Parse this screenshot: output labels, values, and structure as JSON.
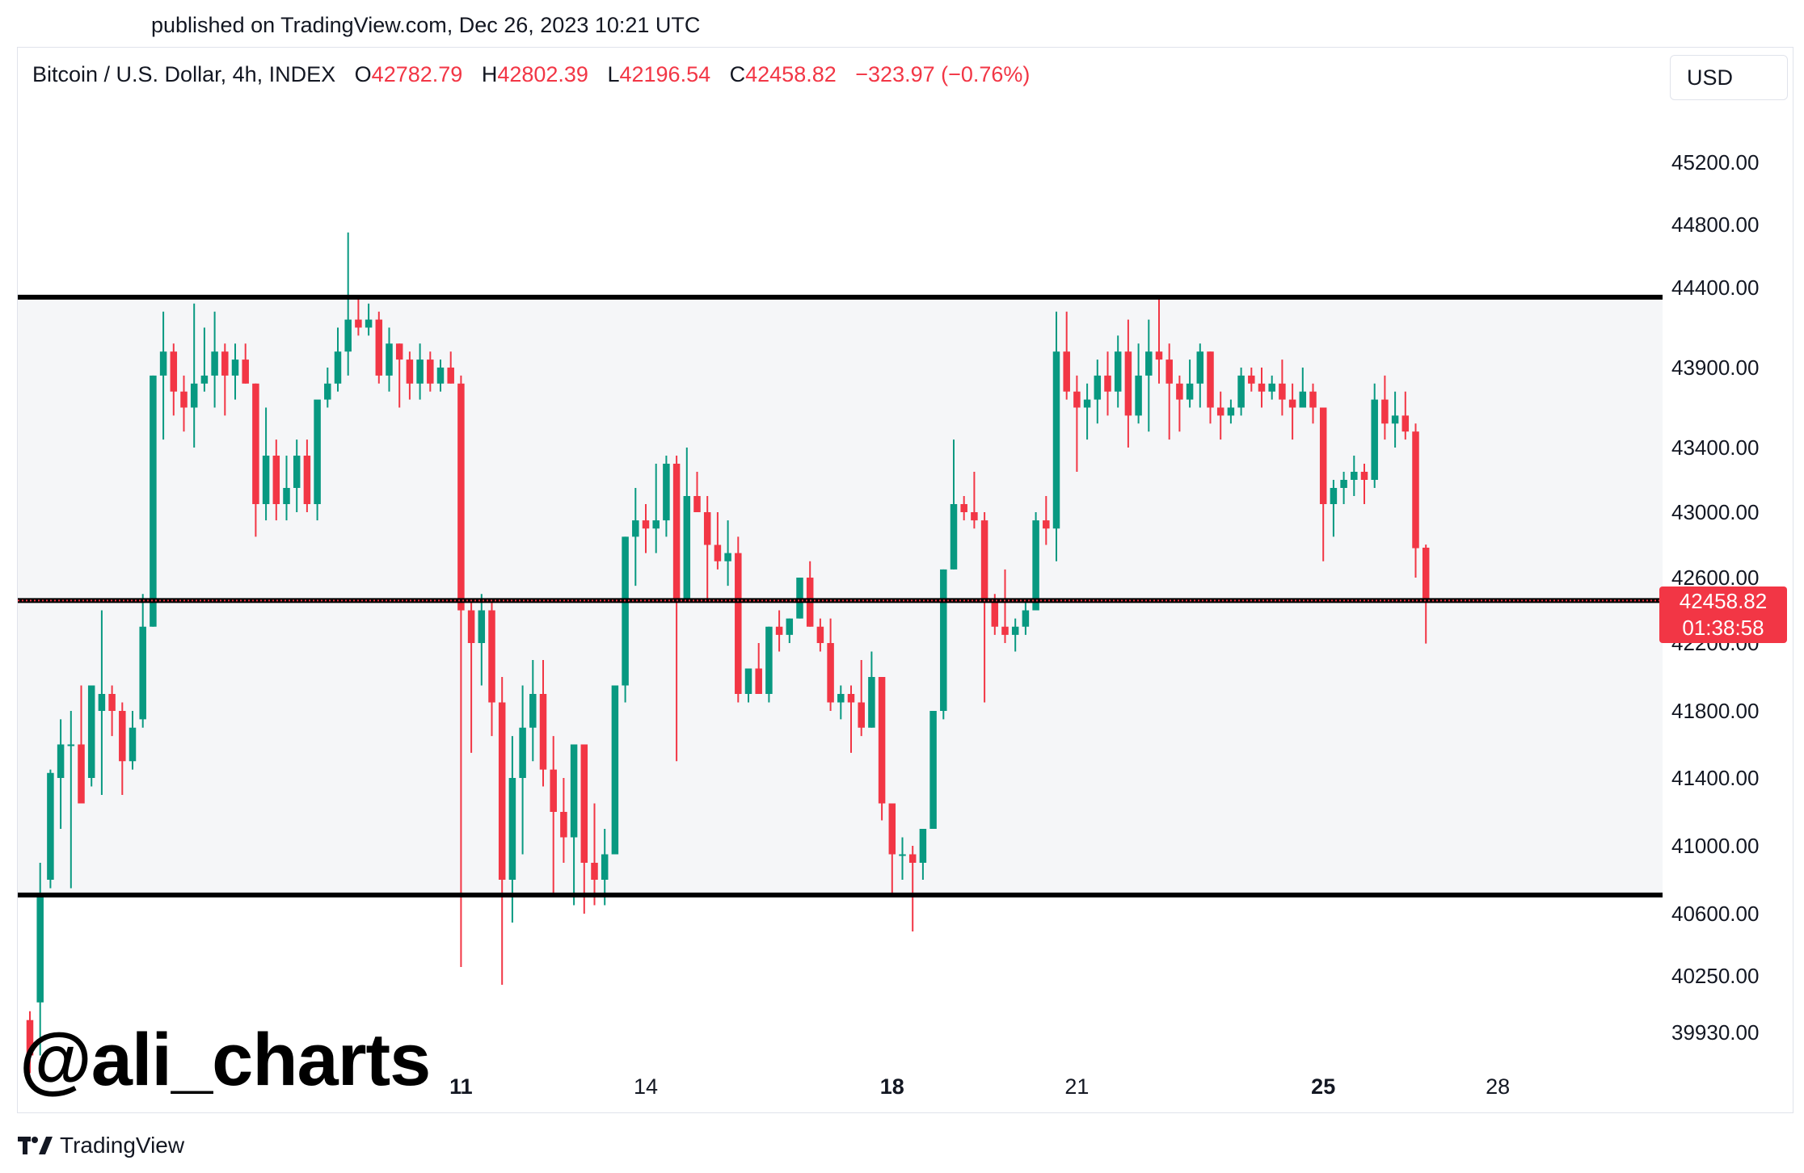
{
  "header": {
    "published": "published on TradingView.com, Dec 26, 2023 10:21 UTC"
  },
  "legend": {
    "symbol": "Bitcoin / U.S. Dollar, 4h, INDEX",
    "open_label": "O",
    "open": "42782.79",
    "high_label": "H",
    "high": "42802.39",
    "low_label": "L",
    "low": "42196.54",
    "close_label": "C",
    "close": "42458.82",
    "change": "−323.97 (−0.76%)"
  },
  "currency_button": "USD",
  "price_tag": {
    "price": "42458.82",
    "countdown": "01:38:58"
  },
  "watermark": "@ali_charts",
  "footer": {
    "brand": "TradingView"
  },
  "colors": {
    "up": "#089981",
    "down": "#f23645",
    "range_fill": "#f5f6f8",
    "level_line": "#000000"
  },
  "chart_data": {
    "type": "candlestick",
    "symbol": "Bitcoin / U.S. Dollar",
    "interval": "4h",
    "y_axis": {
      "side": "right",
      "ticks": [
        {
          "label": "45200.00",
          "value": 45200
        },
        {
          "label": "44800.00",
          "value": 44800
        },
        {
          "label": "44400.00",
          "value": 44400
        },
        {
          "label": "43900.00",
          "value": 43900
        },
        {
          "label": "43400.00",
          "value": 43400
        },
        {
          "label": "43000.00",
          "value": 43000
        },
        {
          "label": "42600.00",
          "value": 42600
        },
        {
          "label": "42200.00",
          "value": 42200
        },
        {
          "label": "41800.00",
          "value": 41800
        },
        {
          "label": "41400.00",
          "value": 41400
        },
        {
          "label": "41000.00",
          "value": 41000
        },
        {
          "label": "40600.00",
          "value": 40600
        },
        {
          "label": "40250.00",
          "value": 40250
        },
        {
          "label": "39930.00",
          "value": 39930
        }
      ]
    },
    "x_axis": {
      "ticks": [
        {
          "label": "11",
          "bold": true,
          "index": 42
        },
        {
          "label": "14",
          "bold": false,
          "index": 60
        },
        {
          "label": "18",
          "bold": true,
          "index": 84
        },
        {
          "label": "21",
          "bold": false,
          "index": 102
        },
        {
          "label": "25",
          "bold": true,
          "index": 126
        },
        {
          "label": "28",
          "bold": false,
          "index": 143
        }
      ]
    },
    "range": {
      "top": 44340,
      "bottom": 40710
    },
    "levels": [
      44340,
      42460,
      40710
    ],
    "current_price": 42458.82,
    "candles": [
      [
        40000,
        40050,
        39700,
        39800
      ],
      [
        40100,
        40900,
        39800,
        40700
      ],
      [
        40800,
        41450,
        40750,
        41430
      ],
      [
        41400,
        41750,
        41100,
        41600
      ],
      [
        41600,
        41800,
        40750,
        41600
      ],
      [
        41600,
        41950,
        41250,
        41250
      ],
      [
        41400,
        41950,
        41350,
        41950
      ],
      [
        41800,
        42400,
        41300,
        41900
      ],
      [
        41900,
        41950,
        41650,
        41800
      ],
      [
        41800,
        41850,
        41300,
        41500
      ],
      [
        41500,
        41800,
        41450,
        41700
      ],
      [
        41750,
        42500,
        41700,
        42300
      ],
      [
        42300,
        43850,
        42300,
        43850
      ],
      [
        43850,
        44250,
        43450,
        44000
      ],
      [
        44000,
        44050,
        43600,
        43750
      ],
      [
        43750,
        43850,
        43500,
        43650
      ],
      [
        43650,
        44300,
        43400,
        43800
      ],
      [
        43800,
        44150,
        43750,
        43850
      ],
      [
        43850,
        44250,
        43650,
        44000
      ],
      [
        44000,
        44050,
        43600,
        43850
      ],
      [
        43850,
        44050,
        43700,
        43950
      ],
      [
        43950,
        44050,
        43800,
        43800
      ],
      [
        43800,
        43800,
        42850,
        43050
      ],
      [
        43050,
        43650,
        42950,
        43350
      ],
      [
        43350,
        43450,
        42950,
        43050
      ],
      [
        43050,
        43350,
        42950,
        43150
      ],
      [
        43150,
        43450,
        43000,
        43350
      ],
      [
        43350,
        43450,
        43000,
        43050
      ],
      [
        43050,
        43650,
        42950,
        43700
      ],
      [
        43700,
        43900,
        43650,
        43800
      ],
      [
        43800,
        44150,
        43750,
        44000
      ],
      [
        44000,
        44750,
        43850,
        44200
      ],
      [
        44200,
        44350,
        44100,
        44150
      ],
      [
        44150,
        44300,
        44100,
        44200
      ],
      [
        44200,
        44250,
        43800,
        43850
      ],
      [
        43850,
        44150,
        43750,
        44050
      ],
      [
        44050,
        44050,
        43650,
        43950
      ],
      [
        43950,
        44000,
        43700,
        43800
      ],
      [
        43800,
        44050,
        43700,
        43950
      ],
      [
        43950,
        44000,
        43750,
        43800
      ],
      [
        43800,
        43950,
        43750,
        43900
      ],
      [
        43900,
        44000,
        43800,
        43800
      ],
      [
        43800,
        43850,
        40300,
        42400
      ],
      [
        42400,
        42450,
        41550,
        42200
      ],
      [
        42200,
        42500,
        41950,
        42400
      ],
      [
        42400,
        42450,
        41650,
        41850
      ],
      [
        41850,
        42000,
        40200,
        40800
      ],
      [
        40800,
        41650,
        40550,
        41400
      ],
      [
        41400,
        41950,
        40950,
        41700
      ],
      [
        41700,
        42100,
        41500,
        41900
      ],
      [
        41900,
        42100,
        41350,
        41450
      ],
      [
        41450,
        41650,
        40700,
        41200
      ],
      [
        41200,
        41400,
        40900,
        41050
      ],
      [
        41050,
        41600,
        40650,
        41600
      ],
      [
        41600,
        41600,
        40600,
        40900
      ],
      [
        40900,
        41250,
        40650,
        40800
      ],
      [
        40800,
        41100,
        40650,
        40950
      ],
      [
        40950,
        41950,
        40950,
        41950
      ],
      [
        41950,
        42850,
        41850,
        42850
      ],
      [
        42850,
        43150,
        42550,
        42950
      ],
      [
        42950,
        43050,
        42750,
        42900
      ],
      [
        42900,
        43300,
        42750,
        42950
      ],
      [
        42950,
        43350,
        42850,
        43300
      ],
      [
        43300,
        43350,
        41500,
        42450
      ],
      [
        42450,
        43400,
        42450,
        43100
      ],
      [
        43100,
        43250,
        43000,
        43000
      ],
      [
        43000,
        43100,
        42450,
        42800
      ],
      [
        42800,
        43000,
        42650,
        42700
      ],
      [
        42700,
        42950,
        42550,
        42750
      ],
      [
        42750,
        42850,
        41850,
        41900
      ],
      [
        41900,
        42050,
        41850,
        42050
      ],
      [
        42050,
        42200,
        41900,
        41900
      ],
      [
        41900,
        42300,
        41850,
        42300
      ],
      [
        42300,
        42400,
        42150,
        42250
      ],
      [
        42250,
        42350,
        42200,
        42350
      ],
      [
        42350,
        42600,
        42350,
        42600
      ],
      [
        42600,
        42700,
        42300,
        42300
      ],
      [
        42300,
        42350,
        42150,
        42200
      ],
      [
        42200,
        42350,
        41800,
        41850
      ],
      [
        41850,
        41950,
        41750,
        41900
      ],
      [
        41900,
        41950,
        41550,
        41850
      ],
      [
        41850,
        42100,
        41650,
        41700
      ],
      [
        41700,
        42150,
        41700,
        42000
      ],
      [
        42000,
        42000,
        41150,
        41250
      ],
      [
        41250,
        41250,
        40700,
        40950
      ],
      [
        40950,
        41050,
        40800,
        40950
      ],
      [
        40950,
        41000,
        40500,
        40900
      ],
      [
        40900,
        41100,
        40800,
        41100
      ],
      [
        41100,
        41800,
        41100,
        41800
      ],
      [
        41800,
        42650,
        41750,
        42650
      ],
      [
        42650,
        43450,
        42650,
        43050
      ],
      [
        43050,
        43100,
        42950,
        43000
      ],
      [
        43000,
        43250,
        42900,
        42950
      ],
      [
        42950,
        43000,
        41850,
        42450
      ],
      [
        42450,
        42500,
        42250,
        42300
      ],
      [
        42300,
        42650,
        42200,
        42250
      ],
      [
        42250,
        42350,
        42150,
        42300
      ],
      [
        42300,
        42450,
        42250,
        42400
      ],
      [
        42400,
        43000,
        42400,
        42950
      ],
      [
        42950,
        43100,
        42800,
        42900
      ],
      [
        42900,
        44250,
        42700,
        44000
      ],
      [
        44000,
        44250,
        43700,
        43750
      ],
      [
        43750,
        43850,
        43250,
        43650
      ],
      [
        43650,
        43800,
        43450,
        43700
      ],
      [
        43700,
        43950,
        43550,
        43850
      ],
      [
        43850,
        44000,
        43600,
        43750
      ],
      [
        43750,
        44100,
        43650,
        44000
      ],
      [
        44000,
        44200,
        43400,
        43600
      ],
      [
        43600,
        44050,
        43550,
        43850
      ],
      [
        43850,
        44200,
        43500,
        44000
      ],
      [
        44000,
        44350,
        43800,
        43950
      ],
      [
        43950,
        44050,
        43450,
        43800
      ],
      [
        43800,
        43850,
        43500,
        43700
      ],
      [
        43700,
        43950,
        43650,
        43800
      ],
      [
        43800,
        44050,
        43650,
        44000
      ],
      [
        44000,
        44000,
        43550,
        43650
      ],
      [
        43650,
        43750,
        43450,
        43600
      ],
      [
        43600,
        43700,
        43550,
        43650
      ],
      [
        43650,
        43900,
        43600,
        43850
      ],
      [
        43850,
        43900,
        43750,
        43800
      ],
      [
        43800,
        43900,
        43650,
        43750
      ],
      [
        43750,
        43850,
        43700,
        43800
      ],
      [
        43800,
        43950,
        43600,
        43700
      ],
      [
        43700,
        43800,
        43450,
        43650
      ],
      [
        43650,
        43900,
        43650,
        43750
      ],
      [
        43750,
        43800,
        43550,
        43650
      ],
      [
        43650,
        43650,
        42700,
        43050
      ],
      [
        43050,
        43200,
        42850,
        43150
      ],
      [
        43150,
        43250,
        43050,
        43200
      ],
      [
        43200,
        43350,
        43100,
        43250
      ],
      [
        43250,
        43300,
        43050,
        43200
      ],
      [
        43200,
        43800,
        43150,
        43700
      ],
      [
        43700,
        43850,
        43450,
        43550
      ],
      [
        43550,
        43750,
        43400,
        43600
      ],
      [
        43600,
        43750,
        43450,
        43500
      ],
      [
        43500,
        43550,
        42600,
        42780
      ],
      [
        42783,
        42802,
        42197,
        42459
      ]
    ]
  }
}
